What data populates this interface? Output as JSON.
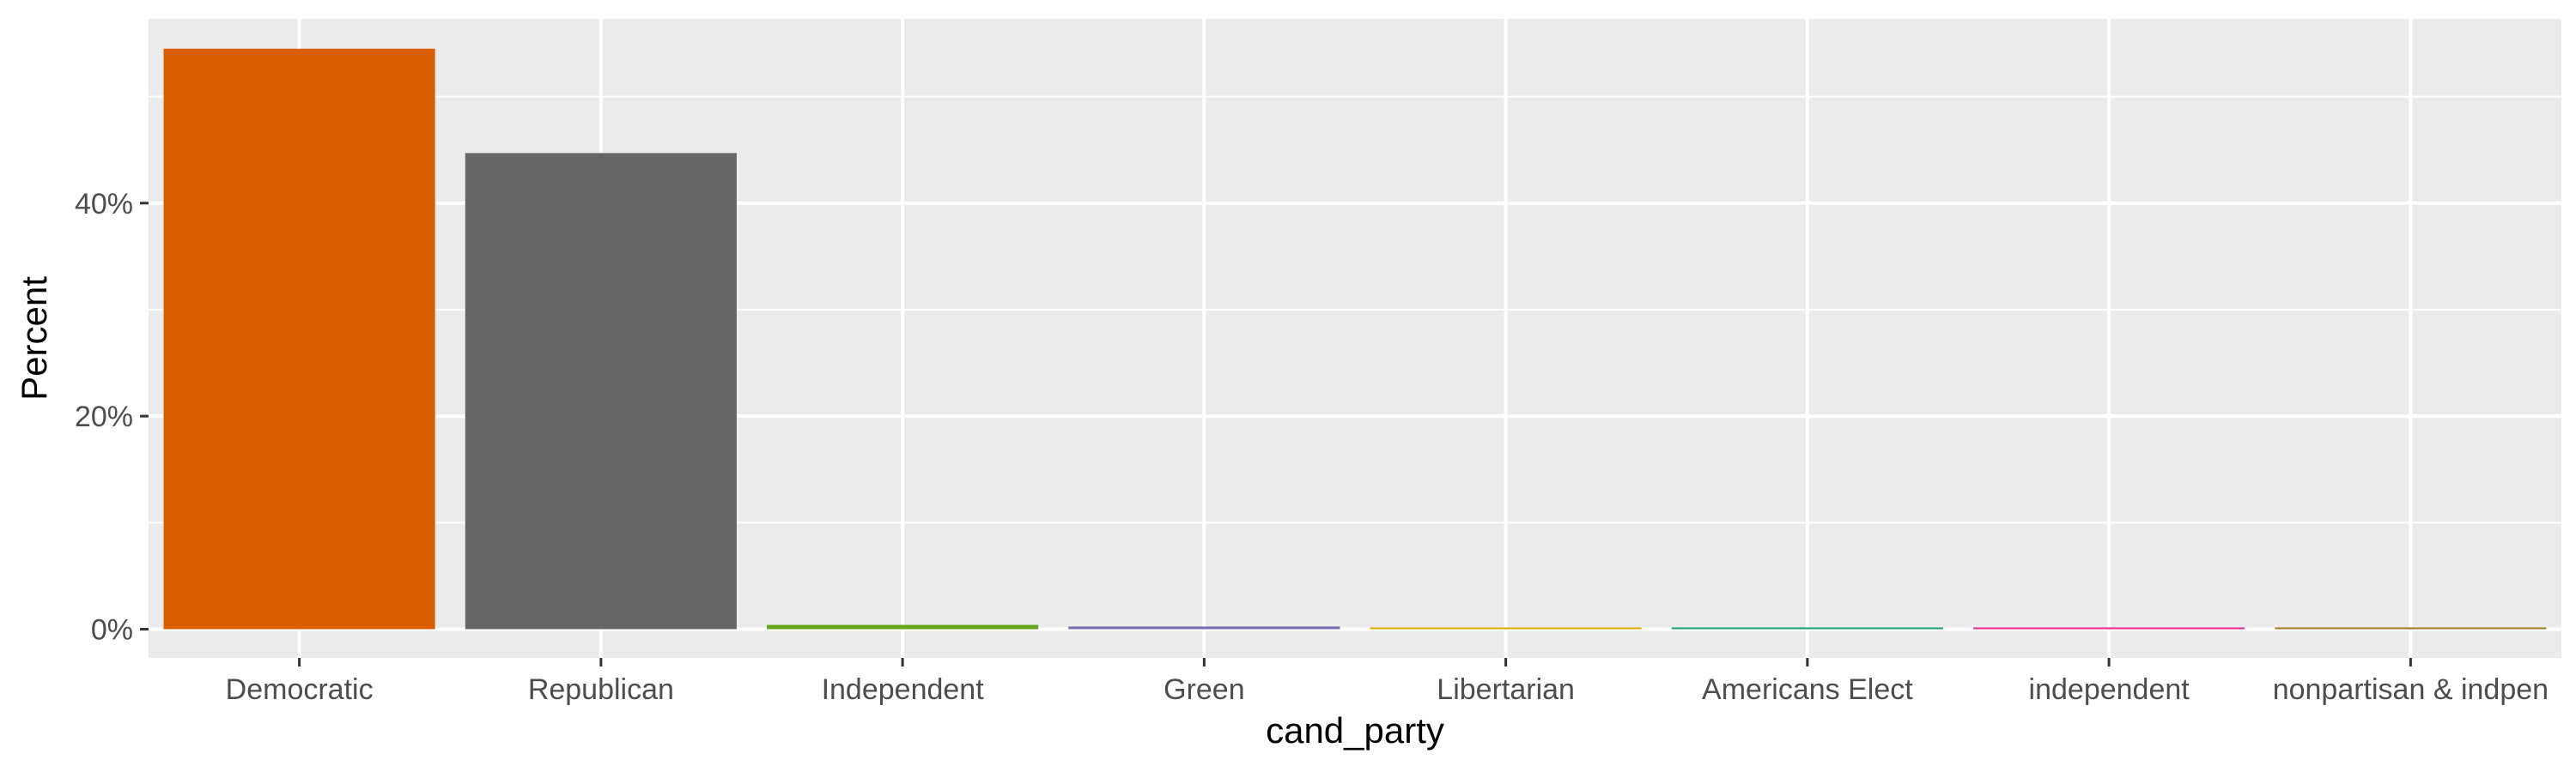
{
  "chart_data": {
    "type": "bar",
    "title": "",
    "xlabel": "cand_party",
    "ylabel": "Percent",
    "categories": [
      "Democratic",
      "Republican",
      "Independent",
      "Green",
      "Libertarian",
      "Americans Elect",
      "independent",
      "nonpartisan & indpen"
    ],
    "values": [
      54.5,
      44.7,
      0.4,
      0.25,
      0.15,
      0.02,
      0.01,
      0.01
    ],
    "colors": [
      "#D95F02",
      "#666666",
      "#66A61E",
      "#7570B3",
      "#E6AB02",
      "#1B9E77",
      "#E7298A",
      "#A6761D"
    ],
    "ylim": [
      -2.7,
      57.3
    ],
    "yticks": [
      0,
      20,
      40
    ],
    "ytick_labels": [
      "0%",
      "20%",
      "40%"
    ],
    "grid": true,
    "panel_background": "#EBEBEB",
    "grid_color": "#FFFFFF",
    "legend": "none"
  }
}
